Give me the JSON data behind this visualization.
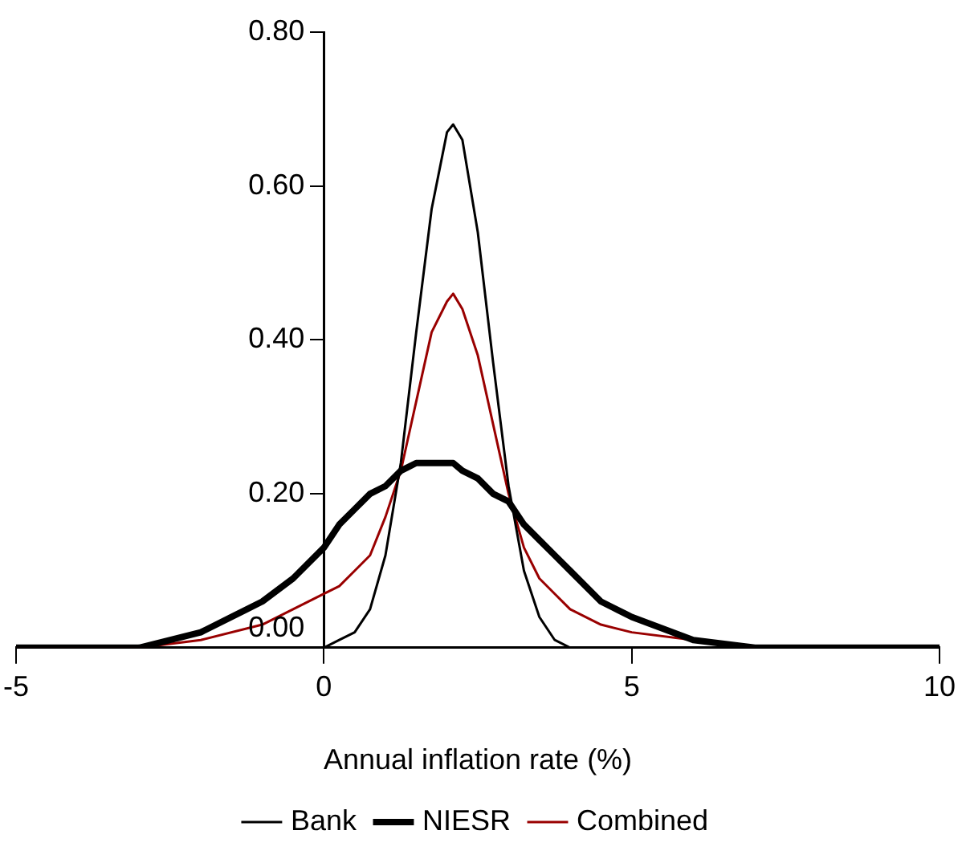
{
  "chart_data": {
    "type": "line",
    "xlabel": "Annual inflation rate (%)",
    "x": [
      -5,
      -4,
      -3,
      -2,
      -1,
      -0.5,
      0,
      0.25,
      0.5,
      0.75,
      1,
      1.25,
      1.5,
      1.75,
      2,
      2.1,
      2.25,
      2.5,
      2.75,
      3,
      3.25,
      3.5,
      3.75,
      4,
      4.5,
      5,
      6,
      7,
      8,
      9,
      10
    ],
    "series": [
      {
        "name": "Bank",
        "color": "#000000",
        "values": [
          0,
          0,
          0,
          0,
          0,
          0,
          0,
          0.01,
          0.02,
          0.05,
          0.12,
          0.24,
          0.41,
          0.57,
          0.67,
          0.68,
          0.66,
          0.54,
          0.37,
          0.21,
          0.1,
          0.04,
          0.01,
          0,
          0,
          0,
          0,
          0,
          0,
          0,
          0
        ]
      },
      {
        "name": "NIESR",
        "color": "#000000",
        "values": [
          0,
          0,
          0,
          0.02,
          0.06,
          0.09,
          0.13,
          0.16,
          0.18,
          0.2,
          0.21,
          0.23,
          0.24,
          0.24,
          0.24,
          0.24,
          0.23,
          0.22,
          0.2,
          0.19,
          0.16,
          0.14,
          0.12,
          0.1,
          0.06,
          0.04,
          0.01,
          0,
          0,
          0,
          0
        ]
      },
      {
        "name": "Combined",
        "color": "#990000",
        "values": [
          0,
          0,
          0,
          0.01,
          0.03,
          0.05,
          0.07,
          0.08,
          0.1,
          0.12,
          0.17,
          0.23,
          0.32,
          0.41,
          0.45,
          0.46,
          0.44,
          0.38,
          0.29,
          0.2,
          0.13,
          0.09,
          0.07,
          0.05,
          0.03,
          0.02,
          0.01,
          0,
          null,
          null,
          null
        ]
      }
    ],
    "xlim": [
      -5,
      10
    ],
    "xticks": [
      -5,
      0,
      5,
      10
    ],
    "ylim": [
      0,
      0.8
    ],
    "yticks": [
      {
        "value": 0,
        "label": "0.00"
      },
      {
        "value": 0.2,
        "label": "0.20"
      },
      {
        "value": 0.4,
        "label": "0.40"
      },
      {
        "value": 0.6,
        "label": "0.60"
      },
      {
        "value": 0.8,
        "label": "0.80"
      }
    ],
    "legend": "bottom",
    "marker": "none",
    "line_style": "solid"
  }
}
